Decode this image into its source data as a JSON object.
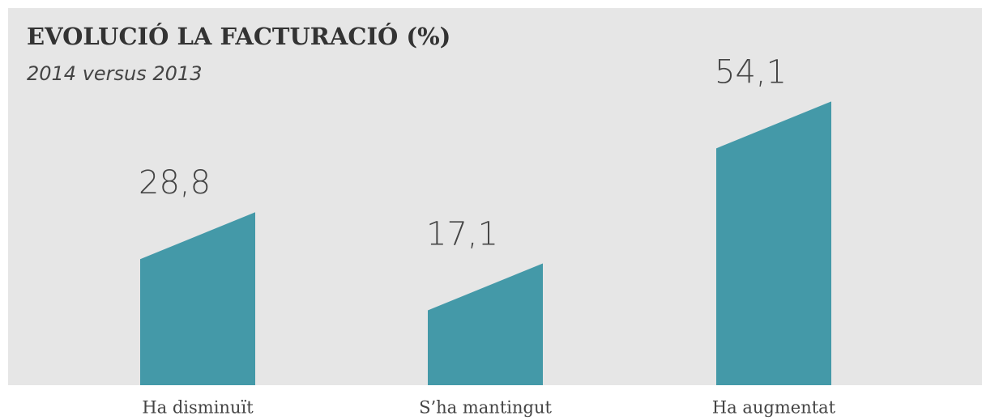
{
  "chart_data": {
    "type": "bar",
    "title": "EVOLUCIÓ LA FACTURACIÓ (%)",
    "subtitle": "2014 versus 2013",
    "categories": [
      "Ha disminuït",
      "S’ha mantingut",
      "Ha augmentat"
    ],
    "values": [
      28.8,
      17.1,
      54.1
    ],
    "value_labels": [
      "28,8",
      "17,1",
      "54,1"
    ],
    "color": "#4499a8"
  }
}
